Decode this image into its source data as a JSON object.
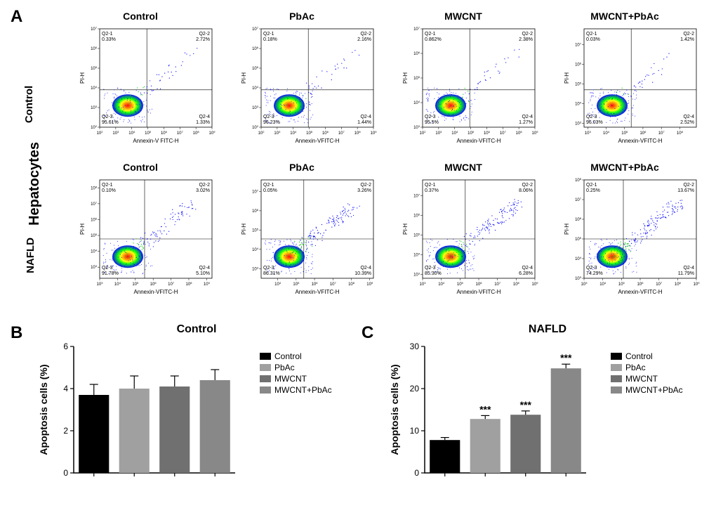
{
  "panelA": {
    "label": "A",
    "side_label_main": "Hepatocytes",
    "side_label_row1": "Control",
    "side_label_row2": "NAFLD",
    "columns": [
      "Control",
      "PbAc",
      "MWCNT",
      "MWCNT+PbAc"
    ],
    "y_axis_label": "PI-H",
    "x_axis_label": "Annexin-V FITC-H",
    "plots": [
      [
        {
          "q21": "0.33%",
          "q22": "2.72%",
          "q23": "95.61%",
          "q24": "1.33%",
          "xexp_min": 2,
          "xexp_max": 9,
          "yexp_min": 2,
          "yexp_max": 7,
          "cross_x": 0.42,
          "cross_y": 0.38
        },
        {
          "q21": "0.18%",
          "q22": "2.16%",
          "q23": "96.23%",
          "q24": "1.44%",
          "xexp_min": 2,
          "xexp_max": 9,
          "yexp_min": 2,
          "yexp_max": 7,
          "cross_x": 0.42,
          "cross_y": 0.38
        },
        {
          "q21": "0.862%",
          "q22": "2.38%",
          "q23": "95.5%",
          "q24": "1.27%",
          "xexp_min": 2,
          "xexp_max": 9,
          "yexp_min": 3,
          "yexp_max": 7,
          "cross_x": 0.42,
          "cross_y": 0.38
        },
        {
          "q21": "0.03%",
          "q22": "1.42%",
          "q23": "96.03%",
          "q24": "2.52%",
          "xexp_min": 2.8,
          "xexp_max": 8.9,
          "yexp_min": 2.8,
          "yexp_max": 7.8,
          "cross_x": 0.42,
          "cross_y": 0.38
        }
      ],
      [
        {
          "q21": "0.10%",
          "q22": "3.02%",
          "q23": "91.78%",
          "q24": "5.10%",
          "xexp_min": 3,
          "xexp_max": 9.3,
          "yexp_min": 2.3,
          "yexp_max": 8.5,
          "cross_x": 0.4,
          "cross_y": 0.4
        },
        {
          "q21": "0.05%",
          "q22": "3.26%",
          "q23": "86.31%",
          "q24": "10.39%",
          "xexp_min": 3.1,
          "xexp_max": 9.2,
          "yexp_min": 2.5,
          "yexp_max": 7.6,
          "cross_x": 0.38,
          "cross_y": 0.4
        },
        {
          "q21": "0.37%",
          "q22": "8.06%",
          "q23": "85.30%",
          "q24": "6.28%",
          "xexp_min": 3,
          "xexp_max": 9,
          "yexp_min": 2.8,
          "yexp_max": 7.8,
          "cross_x": 0.38,
          "cross_y": 0.4
        },
        {
          "q21": "0.25%",
          "q22": "13.67%",
          "q23": "74.29%",
          "q24": "11.79%",
          "xexp_min": 3,
          "xexp_max": 9,
          "yexp_min": 3,
          "yexp_max": 8,
          "cross_x": 0.35,
          "cross_y": 0.4
        }
      ]
    ],
    "density_colors": [
      "#0000ff",
      "#00ff00",
      "#ffff00",
      "#ff8800",
      "#ff0000"
    ]
  },
  "panelB": {
    "label": "B",
    "title": "Control",
    "y_label": "Apoptosis cells (%)",
    "y_max": 6,
    "y_tick_step": 2,
    "bars": [
      {
        "label": "Control",
        "value": 3.7,
        "error": 0.5,
        "color": "#000000",
        "sig": ""
      },
      {
        "label": "PbAc",
        "value": 4.0,
        "error": 0.6,
        "color": "#a0a0a0",
        "sig": ""
      },
      {
        "label": "MWCNT",
        "value": 4.1,
        "error": 0.5,
        "color": "#707070",
        "sig": ""
      },
      {
        "label": "MWCNT+PbAc",
        "value": 4.4,
        "error": 0.5,
        "color": "#888888",
        "sig": ""
      }
    ]
  },
  "panelC": {
    "label": "C",
    "title": "NAFLD",
    "y_label": "Apoptosis cells (%)",
    "y_max": 30,
    "y_tick_step": 10,
    "bars": [
      {
        "label": "Control",
        "value": 7.8,
        "error": 0.6,
        "color": "#000000",
        "sig": ""
      },
      {
        "label": "PbAc",
        "value": 12.8,
        "error": 0.8,
        "color": "#a0a0a0",
        "sig": "***"
      },
      {
        "label": "MWCNT",
        "value": 13.8,
        "error": 0.9,
        "color": "#707070",
        "sig": "***"
      },
      {
        "label": "MWCNT+PbAc",
        "value": 24.8,
        "error": 1.0,
        "color": "#888888",
        "sig": "***"
      }
    ]
  },
  "legend_items": [
    {
      "label": "Control",
      "color": "#000000"
    },
    {
      "label": "PbAc",
      "color": "#a0a0a0"
    },
    {
      "label": "MWCNT",
      "color": "#707070"
    },
    {
      "label": "MWCNT+PbAc",
      "color": "#888888"
    }
  ]
}
